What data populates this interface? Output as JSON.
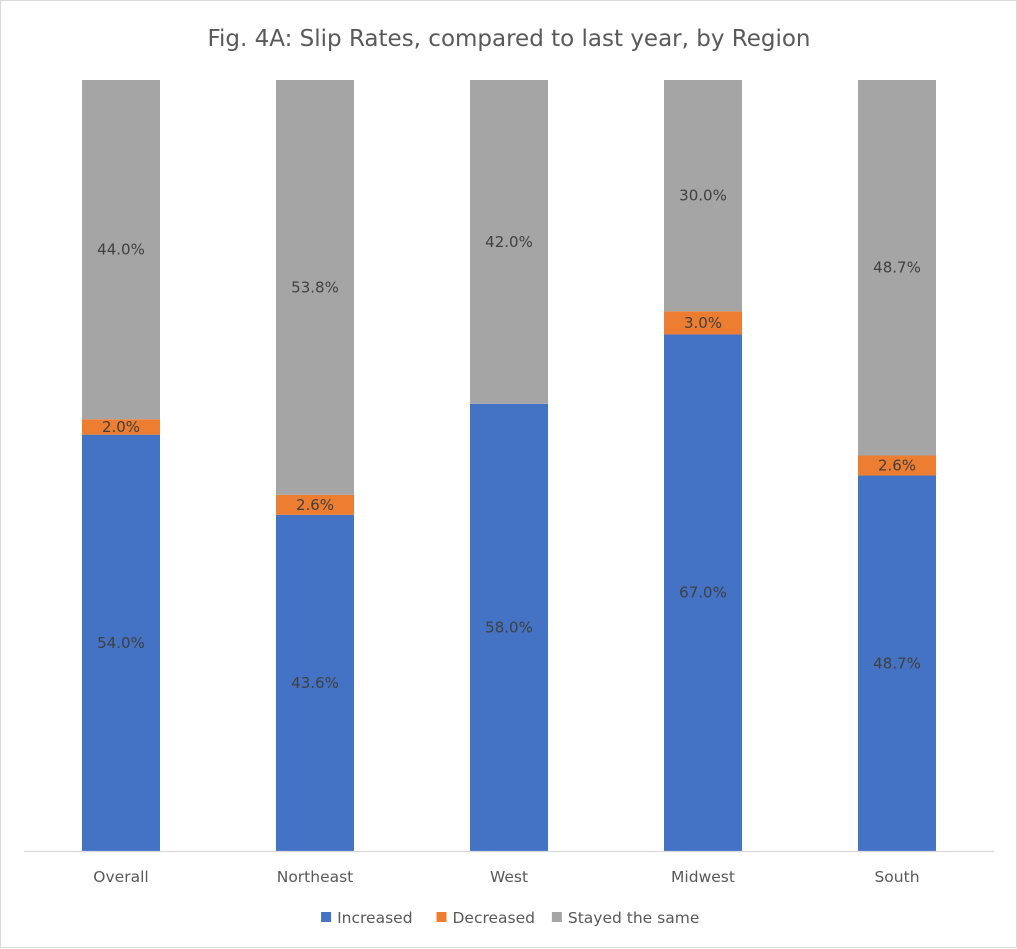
{
  "chart_data": {
    "type": "bar",
    "stacked": true,
    "percent_stacked": true,
    "title": "Fig. 4A: Slip Rates, compared to last year, by Region",
    "categories": [
      "Overall",
      "Northeast",
      "West",
      "Midwest",
      "South"
    ],
    "series": [
      {
        "name": "Increased",
        "color": "#4472C4",
        "values": [
          54.0,
          43.6,
          58.0,
          67.0,
          48.7
        ],
        "labels": [
          "54.0%",
          "43.6%",
          "58.0%",
          "67.0%",
          "48.7%"
        ]
      },
      {
        "name": "Decreased",
        "color": "#ED7D31",
        "values": [
          2.0,
          2.6,
          0.0,
          3.0,
          2.6
        ],
        "labels": [
          "2.0%",
          "2.6%",
          "",
          "3.0%",
          "2.6%"
        ]
      },
      {
        "name": "Stayed the same",
        "color": "#A5A5A5",
        "values": [
          44.0,
          53.8,
          42.0,
          30.0,
          48.7
        ],
        "labels": [
          "44.0%",
          "53.8%",
          "42.0%",
          "30.0%",
          "48.7%"
        ]
      }
    ],
    "ylim": [
      0,
      100
    ],
    "xlabel": "",
    "ylabel": "",
    "grid": false,
    "y_axis_visible": false,
    "legend_position": "bottom"
  }
}
